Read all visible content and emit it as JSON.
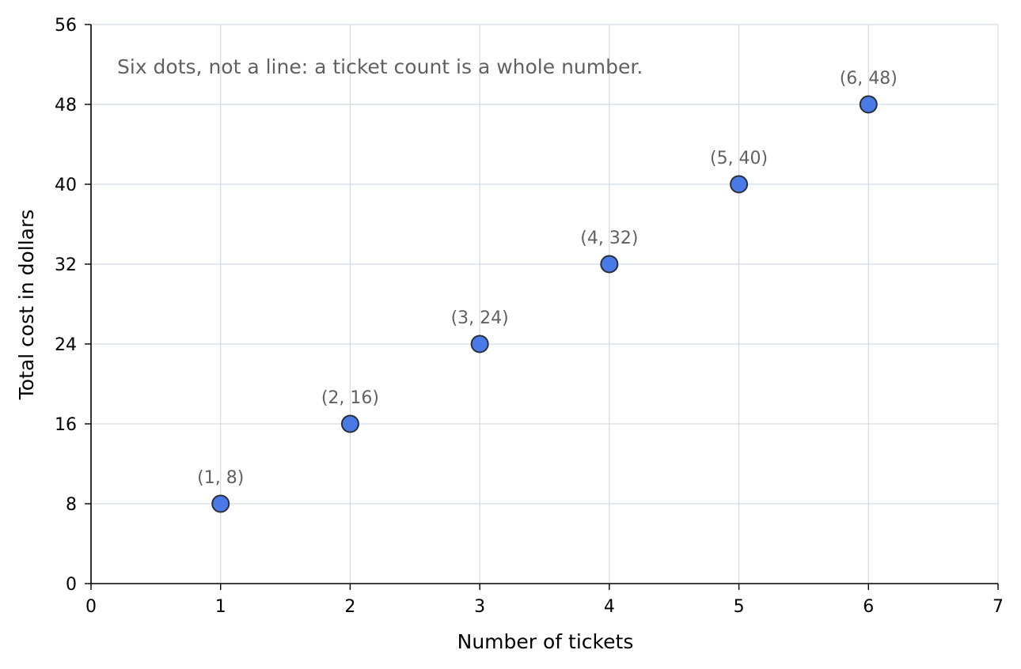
{
  "chart_data": {
    "type": "scatter",
    "title": "",
    "xlabel": "Number of tickets",
    "ylabel": "Total cost in dollars",
    "xlim": [
      0,
      7
    ],
    "ylim": [
      0,
      56
    ],
    "xticks": [
      0,
      1,
      2,
      3,
      4,
      5,
      6,
      7
    ],
    "yticks": [
      0,
      8,
      16,
      24,
      32,
      40,
      48,
      56
    ],
    "grid": true,
    "legend": "none",
    "annotation": "Six dots, not a line: a ticket count is a whole number.",
    "series": [
      {
        "x": [
          1,
          2,
          3,
          4,
          5,
          6
        ],
        "y": [
          8,
          16,
          24,
          32,
          40,
          48
        ],
        "labels": [
          "(1, 8)",
          "(2, 16)",
          "(3, 24)",
          "(4, 32)",
          "(5, 40)",
          "(6, 48)"
        ]
      }
    ],
    "colors": {
      "marker_fill": "#4a7ae8",
      "marker_edge": "#2b2f3a",
      "grid": "#d3dbe5",
      "axis": "#000000",
      "label_text": "#616161"
    }
  }
}
